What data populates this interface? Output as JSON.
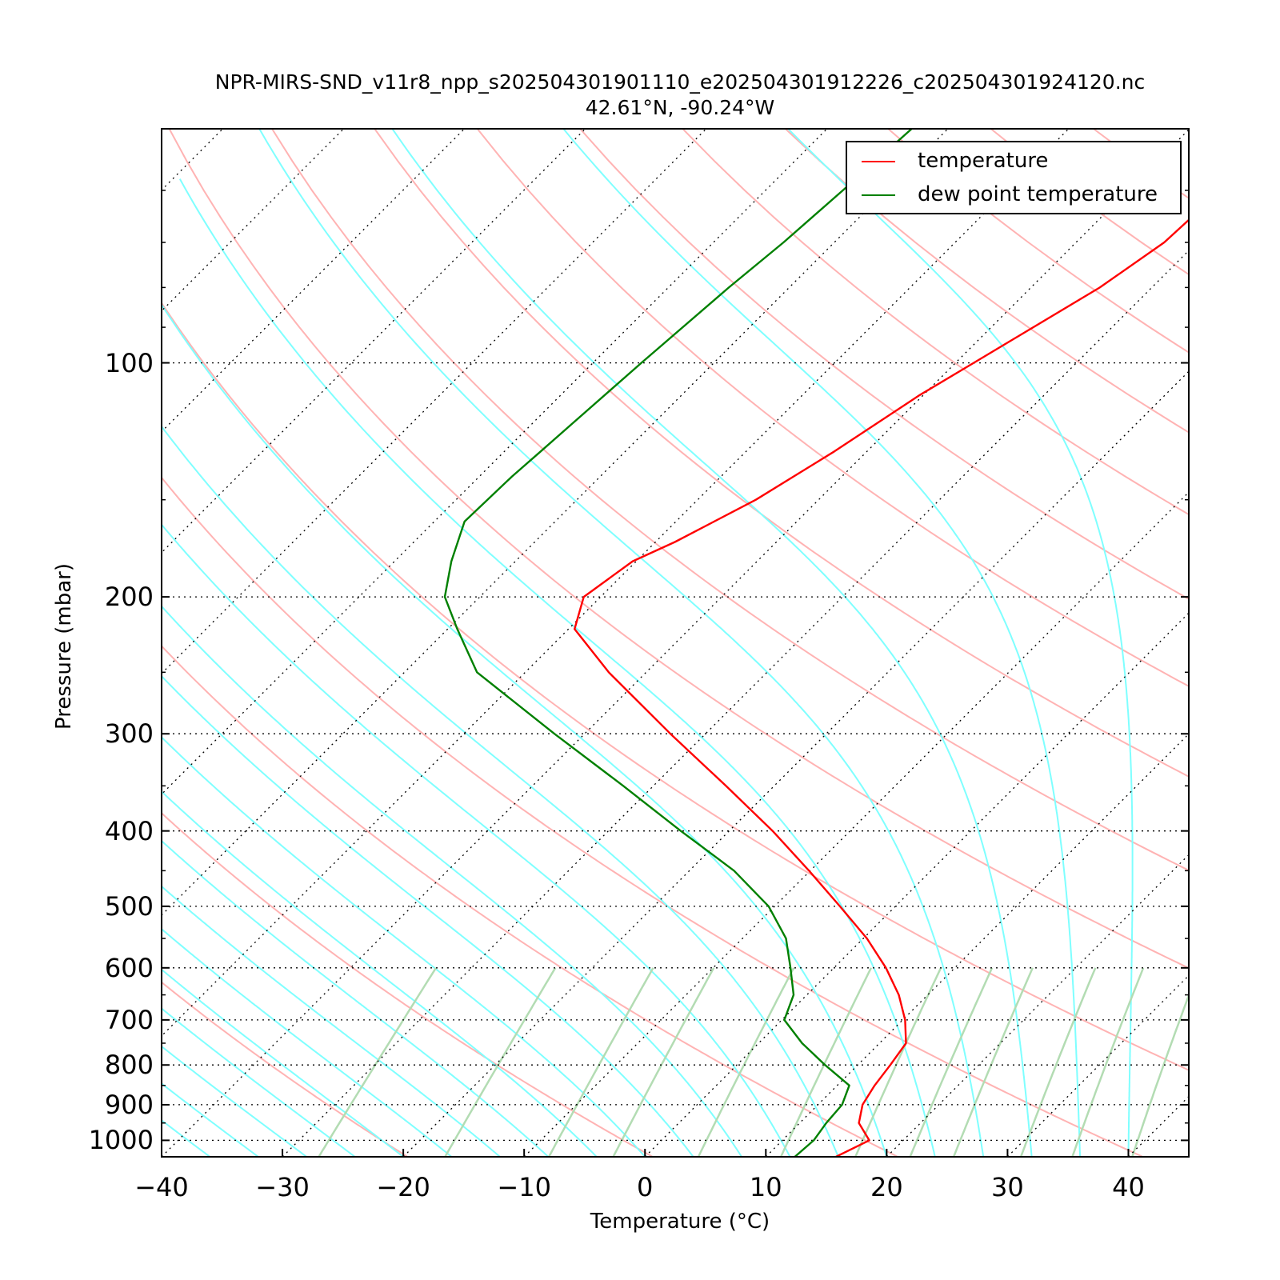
{
  "chart_data": {
    "type": "line",
    "chart_kind": "Skew-T log-P sounding",
    "title": "NPR-MIRS-SND_v11r8_npp_s202504301901110_e202504301912226_c202504301924120.nc",
    "subtitle": "42.61°N, -90.24°W",
    "xlabel": "Temperature (°C)",
    "ylabel": "Pressure (mbar)",
    "xlim": [
      -40,
      45
    ],
    "ylim": [
      1050,
      50
    ],
    "y_scale": "log",
    "x_skew": "45°",
    "xticks": [
      -40,
      -30,
      -20,
      -10,
      0,
      10,
      20,
      30,
      40
    ],
    "xtick_labels": [
      "−40",
      "−30",
      "−20",
      "−10",
      "0",
      "10",
      "20",
      "30",
      "40"
    ],
    "yticks": [
      100,
      200,
      300,
      400,
      500,
      600,
      700,
      800,
      900,
      1000
    ],
    "ytick_labels": [
      "100",
      "200",
      "300",
      "400",
      "500",
      "600",
      "700",
      "800",
      "900",
      "1000"
    ],
    "grid": "dotted isobars and skewed isotherms",
    "legend_position": "top-right",
    "series": [
      {
        "name": "temperature",
        "color": "#ff0000",
        "points": [
          [
            1050,
            15.8
          ],
          [
            1000,
            17.2
          ],
          [
            950,
            14.9
          ],
          [
            900,
            13.7
          ],
          [
            850,
            13.1
          ],
          [
            800,
            12.7
          ],
          [
            750,
            12.2
          ],
          [
            700,
            10.2
          ],
          [
            650,
            7.6
          ],
          [
            600,
            4.3
          ],
          [
            550,
            0.3
          ],
          [
            500,
            -4.6
          ],
          [
            450,
            -10.1
          ],
          [
            400,
            -16.4
          ],
          [
            350,
            -24.0
          ],
          [
            300,
            -32.9
          ],
          [
            250,
            -43.1
          ],
          [
            220,
            -49.5
          ],
          [
            200,
            -51.4
          ],
          [
            180,
            -50.3
          ],
          [
            170,
            -48.4
          ],
          [
            150,
            -45.2
          ],
          [
            130,
            -42.7
          ],
          [
            110,
            -40.3
          ],
          [
            100,
            -38.5
          ],
          [
            80,
            -34.3
          ],
          [
            70,
            -32.7
          ],
          [
            60,
            -32.3
          ],
          [
            50,
            -30.9
          ]
        ]
      },
      {
        "name": "dew point temperature",
        "color": "#008000",
        "points": [
          [
            1050,
            12.4
          ],
          [
            1000,
            12.6
          ],
          [
            950,
            12.2
          ],
          [
            900,
            12.0
          ],
          [
            850,
            11.0
          ],
          [
            800,
            7.3
          ],
          [
            750,
            3.6
          ],
          [
            700,
            0.2
          ],
          [
            650,
            -1.1
          ],
          [
            600,
            -3.6
          ],
          [
            550,
            -6.4
          ],
          [
            500,
            -10.5
          ],
          [
            450,
            -16.3
          ],
          [
            400,
            -24.0
          ],
          [
            350,
            -32.5
          ],
          [
            300,
            -42.5
          ],
          [
            250,
            -54.0
          ],
          [
            220,
            -59.2
          ],
          [
            200,
            -62.9
          ],
          [
            180,
            -65.3
          ],
          [
            160,
            -67.5
          ],
          [
            140,
            -67.3
          ],
          [
            130,
            -67.0
          ],
          [
            120,
            -66.7
          ],
          [
            100,
            -66.0
          ],
          [
            80,
            -65.0
          ],
          [
            70,
            -64.2
          ],
          [
            60,
            -63.6
          ],
          [
            50,
            -63.0
          ]
        ]
      }
    ],
    "reference_lines": {
      "dry_adiabats_color": "#ffb3b3",
      "moist_adiabats_color": "#7fffff",
      "mixing_ratio_color": "#b3dcb3",
      "isotherm_isobar_grid_color": "#000000"
    }
  }
}
